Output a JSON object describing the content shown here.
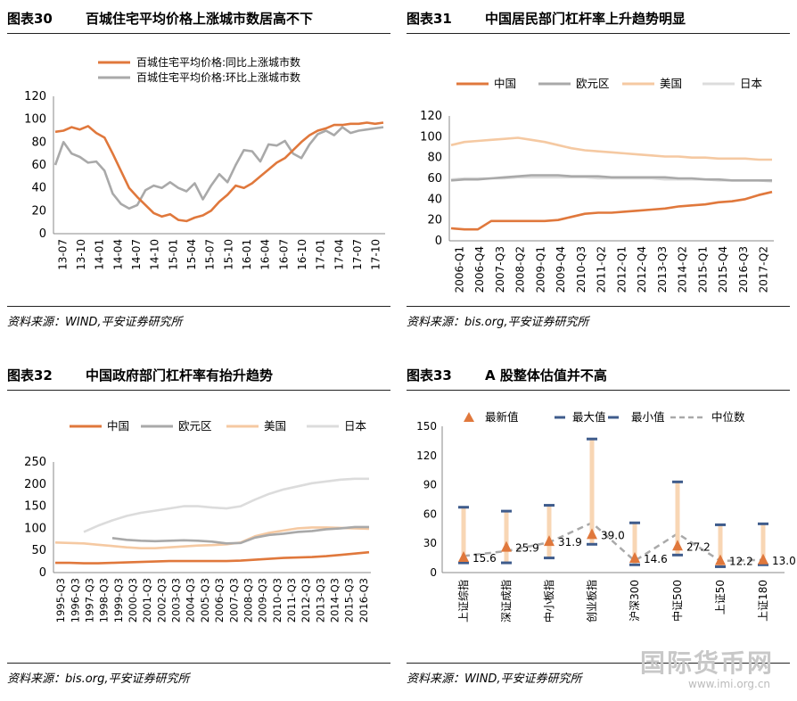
{
  "panels": [
    {
      "id": "p30",
      "num": "图表30",
      "title": "百城住宅平均价格上涨城市数居高不下",
      "source": "资料来源：WIND,平安证券研究所"
    },
    {
      "id": "p31",
      "num": "图表31",
      "title": "中国居民部门杠杆率上升趋势明显",
      "source": "资料来源：bis.org,平安证券研究所"
    },
    {
      "id": "p32",
      "num": "图表32",
      "title": "中国政府部门杠杆率有抬升趋势",
      "source": "资料来源：bis.org,平安证券研究所"
    },
    {
      "id": "p33",
      "num": "图表33",
      "title": "A 股整体估值并不高",
      "source": "资料来源：WIND,平安证券研究所"
    }
  ],
  "watermark": {
    "text": "国际货币网",
    "url": "www.imi.org.cn"
  },
  "chart_data": [
    {
      "type": "line",
      "ylim": [
        0,
        120
      ],
      "yticks": [
        0,
        20,
        40,
        60,
        80,
        100,
        120
      ],
      "xticks": [
        "13-07",
        "13-10",
        "14-01",
        "14-04",
        "14-07",
        "14-10",
        "15-01",
        "15-04",
        "15-07",
        "15-10",
        "16-01",
        "16-04",
        "16-07",
        "16-10",
        "17-01",
        "17-04",
        "17-07",
        "17-10"
      ],
      "series": [
        {
          "name": "百城住宅平均价格:同比上涨城市数",
          "color": "#E0783C",
          "values": [
            89,
            90,
            93,
            91,
            94,
            88,
            84,
            70,
            55,
            40,
            32,
            25,
            18,
            15,
            17,
            12,
            11,
            14,
            16,
            20,
            28,
            34,
            42,
            40,
            44,
            50,
            56,
            62,
            66,
            73,
            80,
            86,
            90,
            92,
            95,
            95,
            96,
            96,
            97,
            96,
            97
          ]
        },
        {
          "name": "百城住宅平均价格:环比上涨城市数",
          "color": "#A9A9A9",
          "values": [
            60,
            80,
            70,
            67,
            62,
            63,
            55,
            35,
            26,
            22,
            25,
            38,
            42,
            40,
            45,
            40,
            37,
            44,
            30,
            42,
            52,
            45,
            60,
            73,
            72,
            63,
            78,
            77,
            81,
            70,
            66,
            78,
            87,
            90,
            86,
            93,
            88,
            90,
            91,
            92,
            93
          ]
        }
      ]
    },
    {
      "type": "line",
      "ylim": [
        0,
        120
      ],
      "yticks": [
        0,
        20,
        40,
        60,
        80,
        100,
        120
      ],
      "xticks": [
        "2006-Q1",
        "2006-Q4",
        "2007-Q3",
        "2008-Q2",
        "2009-Q1",
        "2009-Q4",
        "2010-Q3",
        "2011-Q2",
        "2012-Q1",
        "2012-Q4",
        "2013-Q3",
        "2014-Q2",
        "2015-Q1",
        "2015-Q4",
        "2016-Q3",
        "2017-Q2"
      ],
      "series": [
        {
          "name": "中国",
          "color": "#E0783C",
          "values": [
            12,
            11,
            11,
            19,
            19,
            19,
            19,
            19,
            20,
            23,
            26,
            27,
            27,
            28,
            29,
            30,
            31,
            33,
            34,
            35,
            37,
            38,
            40,
            44,
            47
          ]
        },
        {
          "name": "欧元区",
          "color": "#A9A9A9",
          "values": [
            58,
            59,
            59,
            60,
            61,
            62,
            63,
            63,
            63,
            62,
            62,
            62,
            61,
            61,
            61,
            61,
            61,
            60,
            60,
            59,
            59,
            58,
            58,
            58,
            58
          ]
        },
        {
          "name": "美国",
          "color": "#F5C9A2",
          "values": [
            92,
            95,
            96,
            97,
            98,
            99,
            97,
            95,
            92,
            89,
            87,
            86,
            85,
            84,
            83,
            82,
            81,
            81,
            80,
            80,
            79,
            79,
            79,
            78,
            78
          ]
        },
        {
          "name": "日本",
          "color": "#DCDCDC",
          "values": [
            59,
            60,
            60,
            60,
            60,
            61,
            61,
            61,
            61,
            61,
            61,
            60,
            60,
            60,
            60,
            60,
            59,
            59,
            59,
            59,
            58,
            58,
            58,
            58,
            57
          ]
        }
      ]
    },
    {
      "type": "line",
      "ylim": [
        0,
        250
      ],
      "yticks": [
        0,
        50,
        100,
        150,
        200,
        250
      ],
      "xticks": [
        "1995-Q3",
        "1996-Q3",
        "1997-Q3",
        "1998-Q3",
        "1999-Q3",
        "2000-Q3",
        "2001-Q3",
        "2002-Q3",
        "2003-Q3",
        "2004-Q3",
        "2005-Q3",
        "2006-Q3",
        "2007-Q3",
        "2008-Q3",
        "2009-Q3",
        "2010-Q3",
        "2011-Q3",
        "2012-Q3",
        "2013-Q3",
        "2014-Q3",
        "2015-Q3",
        "2016-Q3"
      ],
      "series": [
        {
          "name": "中国",
          "color": "#E0783C",
          "values": [
            22,
            22,
            21,
            21,
            22,
            23,
            24,
            25,
            26,
            26,
            26,
            26,
            26,
            27,
            29,
            31,
            33,
            34,
            35,
            37,
            40,
            43,
            46
          ]
        },
        {
          "name": "欧元区",
          "color": "#A9A9A9",
          "values": [
            null,
            null,
            null,
            null,
            78,
            74,
            72,
            71,
            72,
            73,
            72,
            70,
            66,
            67,
            79,
            85,
            88,
            92,
            94,
            98,
            100,
            103,
            103
          ]
        },
        {
          "name": "美国",
          "color": "#F5C9A2",
          "values": [
            68,
            67,
            66,
            63,
            60,
            57,
            55,
            55,
            57,
            59,
            61,
            62,
            64,
            68,
            82,
            90,
            95,
            100,
            102,
            102,
            101,
            100,
            99
          ]
        },
        {
          "name": "日本",
          "color": "#DCDCDC",
          "values": [
            null,
            null,
            92,
            106,
            118,
            128,
            135,
            140,
            145,
            150,
            150,
            147,
            145,
            150,
            165,
            178,
            188,
            195,
            202,
            206,
            210,
            212,
            212
          ]
        }
      ]
    },
    {
      "type": "scatter",
      "ylim": [
        0,
        150
      ],
      "yticks": [
        0,
        30,
        60,
        90,
        120,
        150
      ],
      "categories": [
        "上证综指",
        "深证成指",
        "中小板指",
        "创业板指",
        "沪深300",
        "中证500",
        "上证50",
        "上证180"
      ],
      "legend": [
        "最新值",
        "最大值",
        "最小值",
        "中位数"
      ],
      "latest": [
        15.6,
        25.9,
        31.9,
        39.0,
        14.6,
        27.2,
        12.2,
        13.0
      ],
      "latest_labels": [
        "15.6",
        "25.9",
        "31.9",
        "39.0",
        "14.6",
        "27.2",
        "12.2",
        "13.0"
      ],
      "max": [
        67,
        63,
        69,
        137,
        51,
        93,
        49,
        50
      ],
      "min": [
        10,
        10,
        15,
        29,
        8,
        18,
        6,
        8
      ],
      "median": [
        17,
        22,
        31,
        51,
        12,
        40,
        12,
        13
      ],
      "colors": {
        "range": "#F8D6B4",
        "latest": "#E0783C",
        "maxmin": "#3F5C8C",
        "median": "#A9A9A9"
      }
    }
  ]
}
